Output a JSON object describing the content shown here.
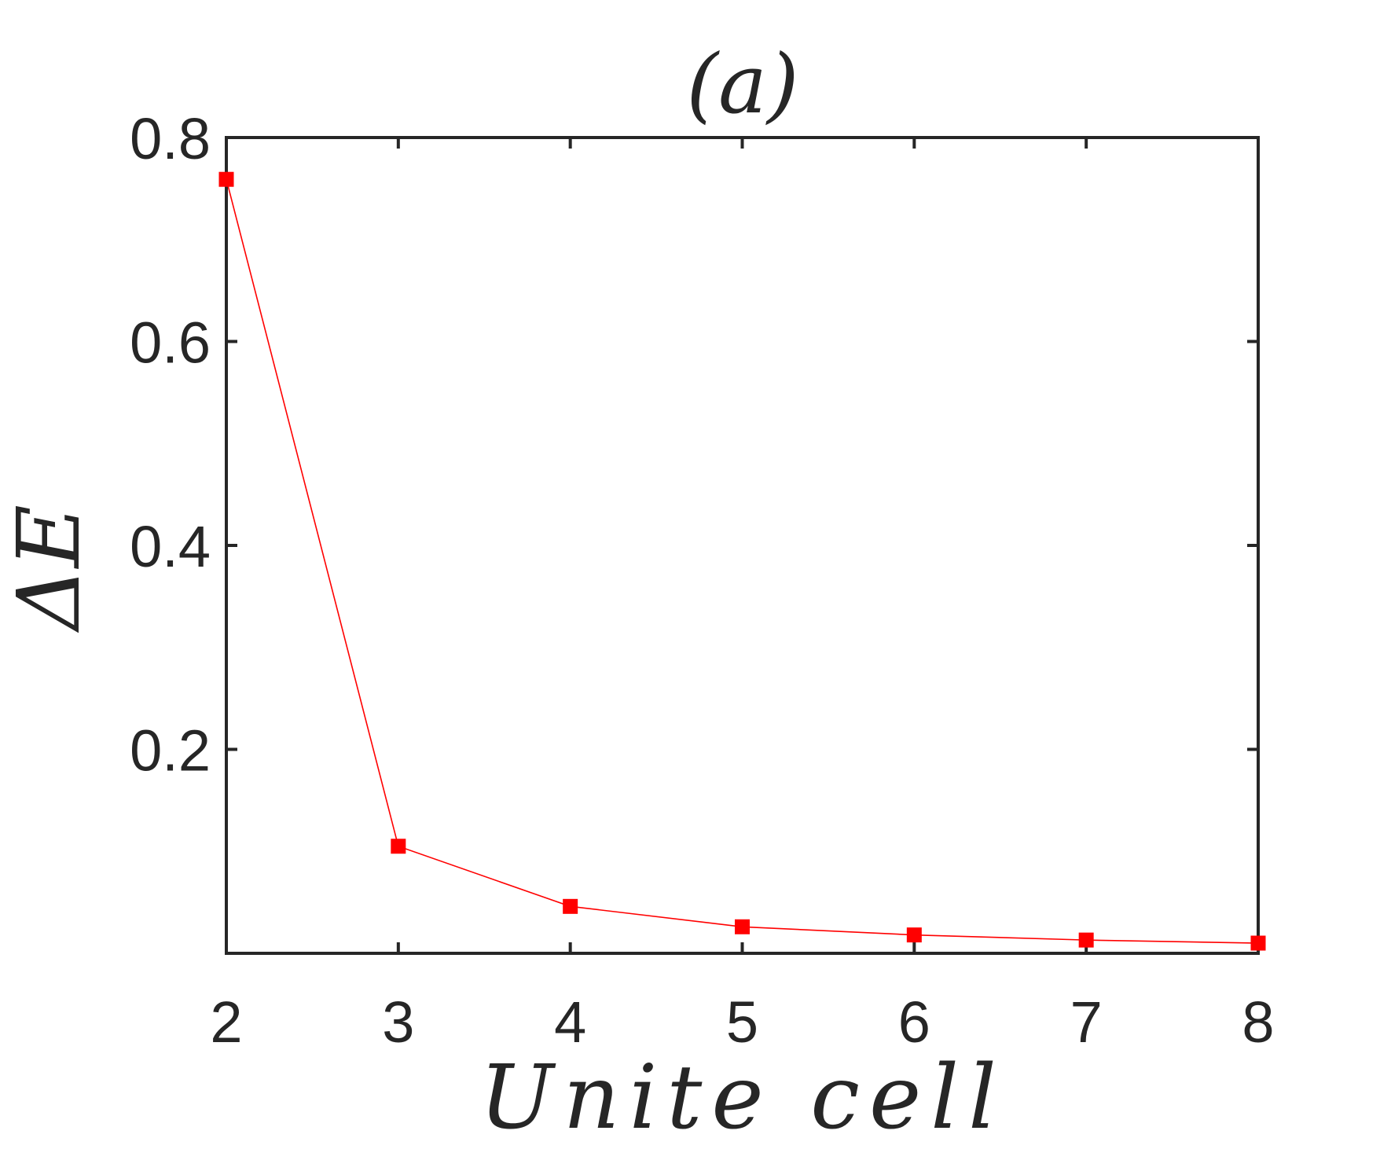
{
  "chart_data": {
    "type": "line",
    "title": "(a)",
    "xlabel": "Unite cell",
    "ylabel": "ΔE",
    "x": [
      2,
      3,
      4,
      5,
      6,
      7,
      8
    ],
    "series": [
      {
        "values": [
          0.759,
          0.105,
          0.046,
          0.026,
          0.018,
          0.013,
          0.01
        ],
        "color": "#ff0000",
        "marker": "square"
      }
    ],
    "xlim": [
      2,
      8
    ],
    "ylim": [
      0,
      0.8
    ],
    "xticks": [
      2,
      3,
      4,
      5,
      6,
      7,
      8
    ],
    "yticks": [
      0.2,
      0.4,
      0.6,
      0.8
    ],
    "xtick_labels": [
      "2",
      "3",
      "4",
      "5",
      "6",
      "7",
      "8"
    ],
    "ytick_labels": [
      "0.2",
      "0.4",
      "0.6",
      "0.8"
    ],
    "grid": false,
    "box": true
  }
}
